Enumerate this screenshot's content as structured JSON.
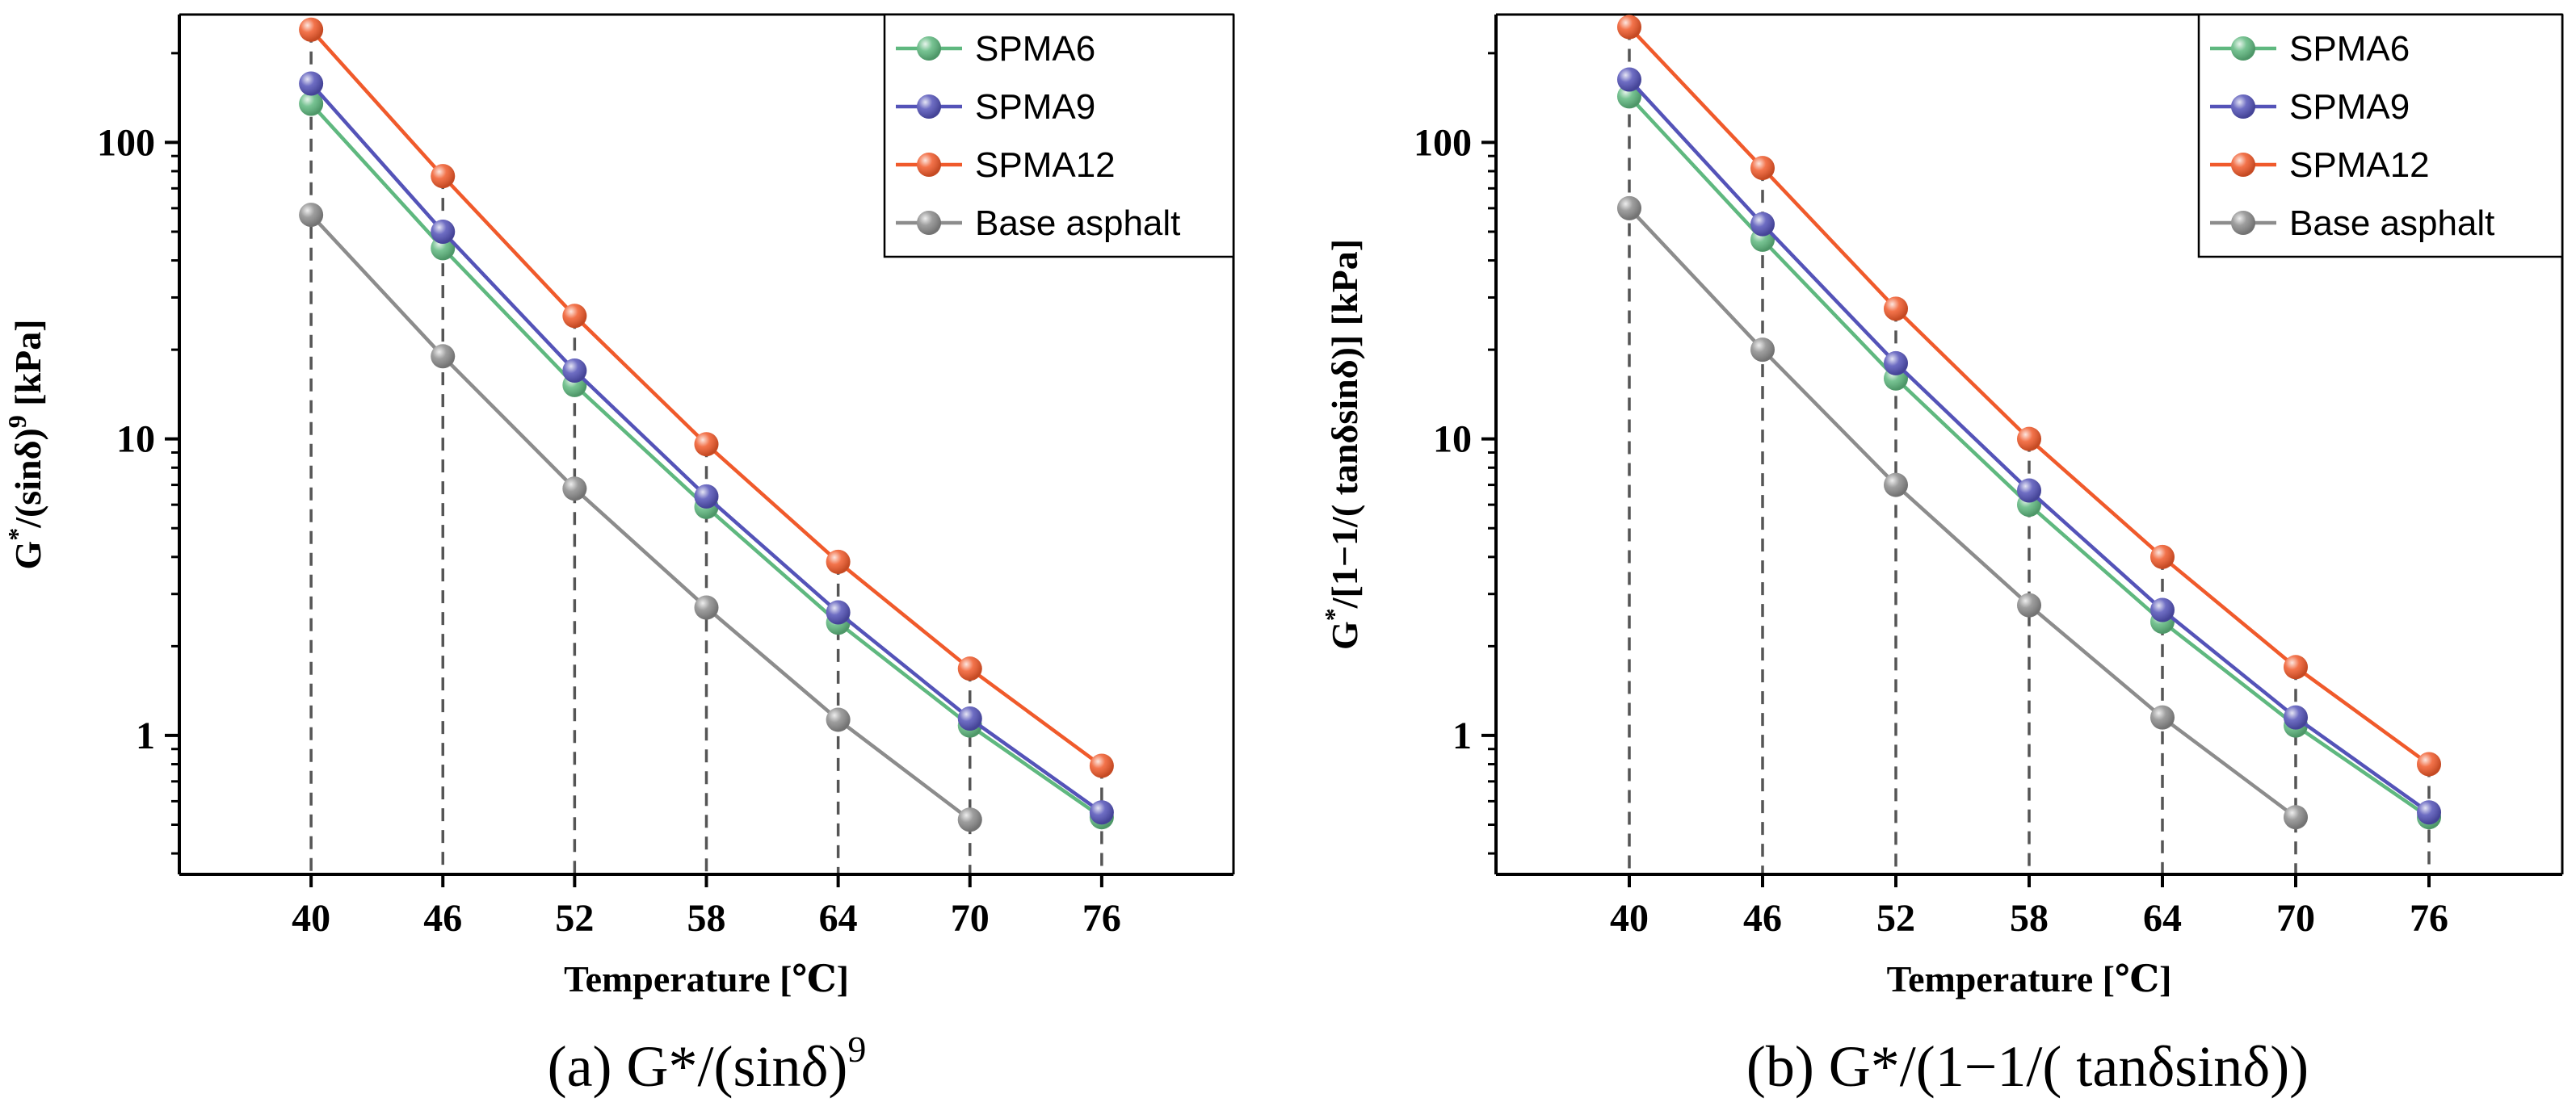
{
  "chart_data": [
    {
      "type": "line",
      "yscale": "log",
      "caption": "(a) G*/(sinδ)",
      "caption_sup": "9",
      "xlabel": "Temperature [℃]",
      "ylabel_main": "G",
      "ylabel_sup1": "*",
      "ylabel_mid": "/(sinδ)",
      "ylabel_sup2": "9",
      "ylabel_end": " [kPa]",
      "categories": [
        "40",
        "46",
        "52",
        "58",
        "64",
        "70",
        "76"
      ],
      "x": [
        40,
        46,
        52,
        58,
        64,
        70,
        76
      ],
      "xlim": [
        34,
        82
      ],
      "ylim": [
        0.34,
        270
      ],
      "yticks": [
        1,
        10,
        100
      ],
      "ytick_labels": [
        "1",
        "10",
        "100"
      ],
      "legend_position": "top-right",
      "series": [
        {
          "name": "SPMA6",
          "color": "#5fb87f",
          "values": [
            135,
            44,
            15.2,
            5.9,
            2.4,
            1.08,
            0.53
          ]
        },
        {
          "name": "SPMA9",
          "color": "#5453b8",
          "values": [
            158,
            50,
            17.0,
            6.4,
            2.6,
            1.14,
            0.55
          ]
        },
        {
          "name": "SPMA12",
          "color": "#f05a2b",
          "values": [
            240,
            77,
            26,
            9.6,
            3.85,
            1.68,
            0.79
          ]
        },
        {
          "name": "Base asphalt",
          "color": "#8c8c8c",
          "values": [
            57,
            19,
            6.8,
            2.7,
            1.13,
            0.52,
            null
          ]
        }
      ]
    },
    {
      "type": "line",
      "yscale": "log",
      "caption": "(b) G*/(1−1/( tanδsinδ))",
      "caption_sup": "",
      "xlabel": "Temperature [℃]",
      "ylabel_main": "G",
      "ylabel_sup1": "*",
      "ylabel_mid": "/[1−1/( tanδsinδ)]",
      "ylabel_sup2": "",
      "ylabel_end": " [kPa]",
      "categories": [
        "40",
        "46",
        "52",
        "58",
        "64",
        "70",
        "76"
      ],
      "x": [
        40,
        46,
        52,
        58,
        64,
        70,
        76
      ],
      "xlim": [
        34,
        82
      ],
      "ylim": [
        0.34,
        270
      ],
      "yticks": [
        1,
        10,
        100
      ],
      "ytick_labels": [
        "1",
        "10",
        "100"
      ],
      "legend_position": "top-right",
      "series": [
        {
          "name": "SPMA6",
          "color": "#5fb87f",
          "values": [
            143,
            47,
            16,
            6.0,
            2.42,
            1.08,
            0.53
          ]
        },
        {
          "name": "SPMA9",
          "color": "#5453b8",
          "values": [
            163,
            53,
            18,
            6.7,
            2.65,
            1.15,
            0.55
          ]
        },
        {
          "name": "SPMA12",
          "color": "#f05a2b",
          "values": [
            245,
            82,
            27.5,
            10,
            4.0,
            1.7,
            0.8
          ]
        },
        {
          "name": "Base asphalt",
          "color": "#8c8c8c",
          "values": [
            60,
            20,
            7.0,
            2.75,
            1.15,
            0.53,
            null
          ]
        }
      ]
    }
  ]
}
